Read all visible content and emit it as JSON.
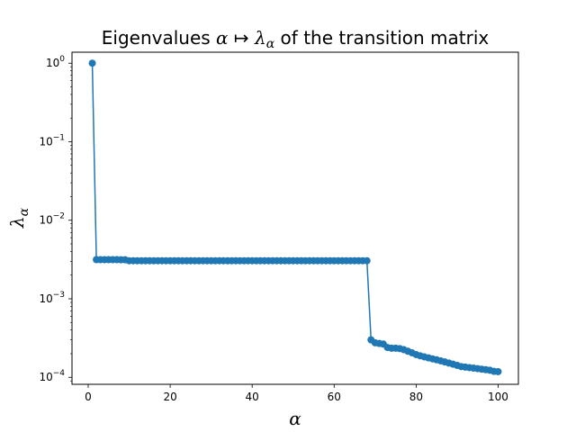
{
  "chart_data": {
    "type": "line",
    "title": {
      "prefix": "Eigenvalues ",
      "alpha": "α",
      "arrow": " ↦ ",
      "lambda": "λ",
      "sub": "α",
      "suffix": " of the transition matrix"
    },
    "xlabel": "α",
    "ylabel": {
      "main": "λ",
      "sub": "α"
    },
    "y_scale": "log",
    "xlim": [
      -3.95,
      104.95
    ],
    "ylim": [
      8.15e-05,
      1.38
    ],
    "x_ticks": [
      0,
      20,
      40,
      60,
      80,
      100
    ],
    "y_ticks": [
      {
        "value": 1,
        "base": "10",
        "exp": "0"
      },
      {
        "value": 0.1,
        "base": "10",
        "exp": "−1"
      },
      {
        "value": 0.01,
        "base": "10",
        "exp": "−2"
      },
      {
        "value": 0.001,
        "base": "10",
        "exp": "−3"
      },
      {
        "value": 0.0001,
        "base": "10",
        "exp": "−4"
      }
    ],
    "grid": false,
    "series": [
      {
        "color": "#1f77b4",
        "marker": "circle",
        "x": [
          1,
          2,
          3,
          4,
          5,
          6,
          7,
          8,
          9,
          10,
          11,
          12,
          13,
          14,
          15,
          16,
          17,
          18,
          19,
          20,
          21,
          22,
          23,
          24,
          25,
          26,
          27,
          28,
          29,
          30,
          31,
          32,
          33,
          34,
          35,
          36,
          37,
          38,
          39,
          40,
          41,
          42,
          43,
          44,
          45,
          46,
          47,
          48,
          49,
          50,
          51,
          52,
          53,
          54,
          55,
          56,
          57,
          58,
          59,
          60,
          61,
          62,
          63,
          64,
          65,
          66,
          67,
          68,
          69,
          70,
          71,
          72,
          73,
          74,
          75,
          76,
          77,
          78,
          79,
          80,
          81,
          82,
          83,
          84,
          85,
          86,
          87,
          88,
          89,
          90,
          91,
          92,
          93,
          94,
          95,
          96,
          97,
          98,
          99,
          100
        ],
        "y": [
          1.0,
          0.00315,
          0.00315,
          0.00315,
          0.00315,
          0.00315,
          0.00315,
          0.00314,
          0.00314,
          0.00305,
          0.00305,
          0.00305,
          0.00305,
          0.00305,
          0.00305,
          0.00305,
          0.00305,
          0.00305,
          0.00305,
          0.00305,
          0.00305,
          0.00305,
          0.00305,
          0.00305,
          0.00305,
          0.00305,
          0.00305,
          0.00305,
          0.00305,
          0.00305,
          0.00305,
          0.00305,
          0.00305,
          0.00305,
          0.00305,
          0.00305,
          0.00305,
          0.00305,
          0.00305,
          0.00305,
          0.00305,
          0.00305,
          0.00305,
          0.00305,
          0.00305,
          0.00305,
          0.00305,
          0.00305,
          0.00305,
          0.00305,
          0.00305,
          0.00305,
          0.00305,
          0.00305,
          0.00305,
          0.00305,
          0.00305,
          0.00305,
          0.00305,
          0.00305,
          0.00305,
          0.00305,
          0.00305,
          0.00305,
          0.00305,
          0.00305,
          0.00305,
          0.00305,
          0.0003,
          0.000275,
          0.00027,
          0.000265,
          0.00024,
          0.000235,
          0.000235,
          0.000232,
          0.000225,
          0.000215,
          0.000205,
          0.000195,
          0.000188,
          0.000182,
          0.000177,
          0.000172,
          0.000167,
          0.000162,
          0.000157,
          0.000152,
          0.000147,
          0.000142,
          0.000137,
          0.000135,
          0.000133,
          0.000131,
          0.000129,
          0.000127,
          0.000125,
          0.000123,
          0.000119,
          0.000118
        ]
      }
    ]
  }
}
